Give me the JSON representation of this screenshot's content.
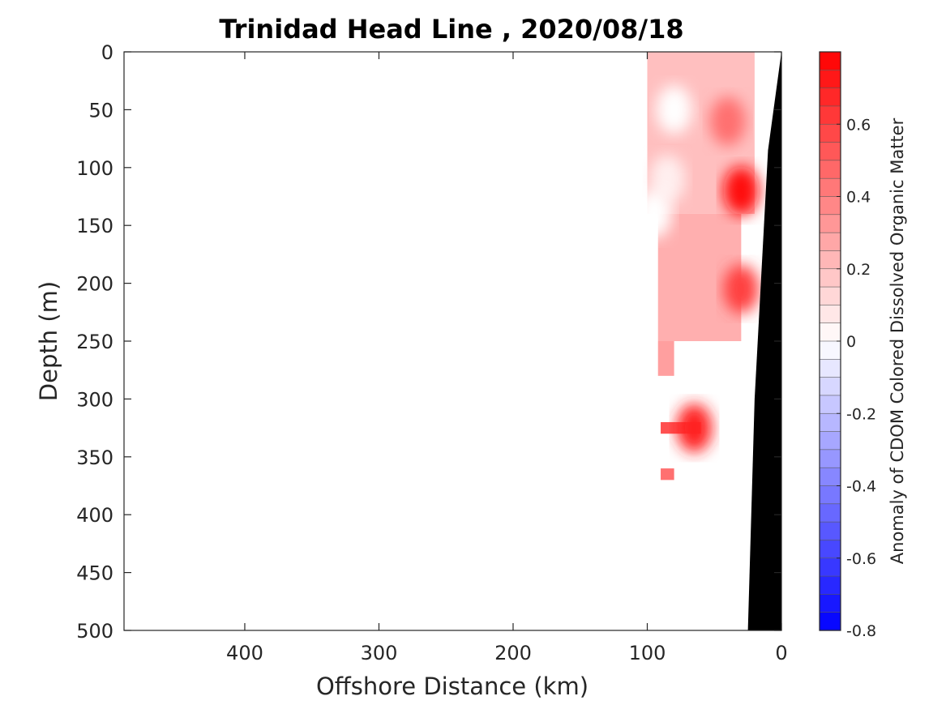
{
  "chart_data": {
    "type": "heatmap",
    "title": "Trinidad Head Line , 2020/08/18",
    "xlabel": "Offshore Distance (km)",
    "ylabel": "Depth (m)",
    "xlim": [
      490,
      0
    ],
    "ylim": [
      0,
      500
    ],
    "x_reversed": true,
    "y_reversed": true,
    "x_ticks": [
      400,
      300,
      200,
      100,
      0
    ],
    "y_ticks": [
      0,
      50,
      100,
      150,
      200,
      250,
      300,
      350,
      400,
      450,
      500
    ],
    "grid": false,
    "colorbar": {
      "label": "Anomaly of CDOM Colored Dissolved Organic Matter",
      "range": [
        -0.8,
        0.8
      ],
      "ticks": [
        0.6,
        0.4,
        0.2,
        0,
        -0.2,
        -0.4,
        -0.6,
        -0.8
      ],
      "low_color": "#0000ff",
      "mid_color": "#ffffff",
      "high_color": "#ff0000",
      "levels": 32
    },
    "colormap": {
      "negative": "#0000ff",
      "zero": "#ffffff",
      "positive": "#ff0000"
    },
    "bathymetry_color": "#000000",
    "bathymetry": [
      {
        "distance": 0,
        "depth": 0
      },
      {
        "distance": 10,
        "depth": 85
      },
      {
        "distance": 20,
        "depth": 300
      },
      {
        "distance": 25,
        "depth": 500
      }
    ],
    "anomaly_regions": [
      {
        "distance_start": 100,
        "distance_end": 20,
        "depth_start": 0,
        "depth_end": 140,
        "value": 0.2
      },
      {
        "distance_start": 92,
        "distance_end": 30,
        "depth_start": 140,
        "depth_end": 250,
        "value": 0.25
      },
      {
        "distance_start": 92,
        "distance_end": 80,
        "depth_start": 250,
        "depth_end": 280,
        "value": 0.3
      },
      {
        "distance_start": 90,
        "distance_end": 60,
        "depth_start": 320,
        "depth_end": 330,
        "value": 0.55
      },
      {
        "distance_start": 90,
        "distance_end": 80,
        "depth_start": 360,
        "depth_end": 370,
        "value": 0.45
      }
    ],
    "anomaly_cores": [
      {
        "distance": 80,
        "depth": 50,
        "value": 0.0
      },
      {
        "distance": 85,
        "depth": 110,
        "value": 0.05
      },
      {
        "distance": 95,
        "depth": 140,
        "value": 0.0
      },
      {
        "distance": 30,
        "depth": 120,
        "value": 0.75
      },
      {
        "distance": 30,
        "depth": 205,
        "value": 0.6
      },
      {
        "distance": 40,
        "depth": 60,
        "value": 0.45
      },
      {
        "distance": 65,
        "depth": 325,
        "value": 0.7
      }
    ]
  }
}
